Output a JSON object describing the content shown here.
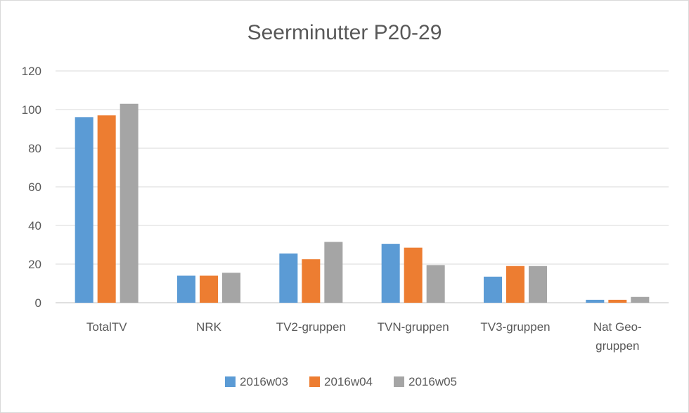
{
  "chart_data": {
    "type": "bar",
    "title": "Seerminutter P20-29",
    "categories": [
      [
        "TotalTV"
      ],
      [
        "NRK"
      ],
      [
        "TV2-gruppen"
      ],
      [
        "TVN-gruppen"
      ],
      [
        "TV3-gruppen"
      ],
      [
        "Nat Geo-",
        "gruppen"
      ]
    ],
    "series": [
      {
        "name": "2016w03",
        "color": "#5b9bd5",
        "values": [
          96,
          14,
          25.5,
          30.5,
          13.5,
          1.5
        ]
      },
      {
        "name": "2016w04",
        "color": "#ed7d31",
        "values": [
          97,
          14,
          22.5,
          28.5,
          19,
          1.5
        ]
      },
      {
        "name": "2016w05",
        "color": "#a5a5a5",
        "values": [
          103,
          15.5,
          31.5,
          19.5,
          19,
          3
        ]
      }
    ],
    "yticks": [
      0,
      20,
      40,
      60,
      80,
      100,
      120
    ],
    "ylim": [
      0,
      120
    ],
    "grid": true,
    "legend_position": "bottom"
  }
}
